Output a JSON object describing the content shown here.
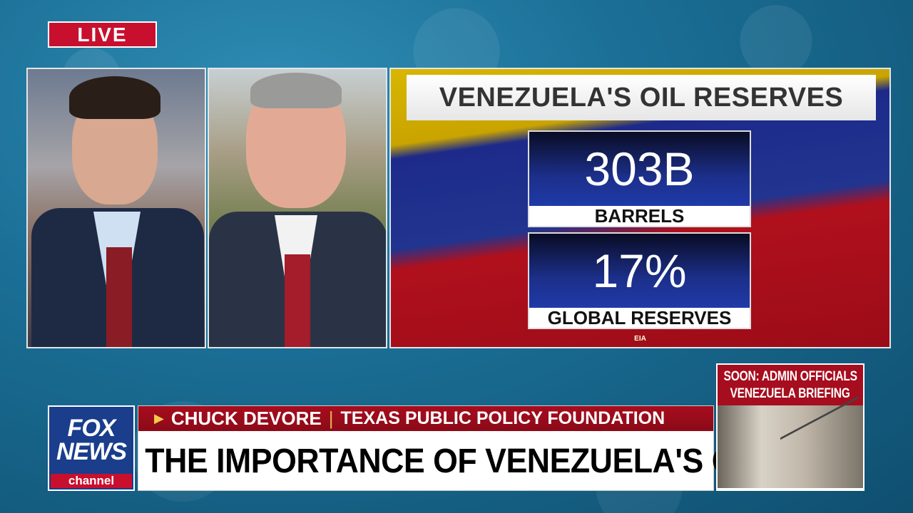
{
  "live_badge": "LIVE",
  "graphic": {
    "title": "VENEZUELA'S OIL RESERVES",
    "stats": [
      {
        "value": "303B",
        "label": "BARRELS"
      },
      {
        "value": "17%",
        "label": "GLOBAL RESERVES"
      }
    ],
    "source": "EIA"
  },
  "network": {
    "logo_text": "FOX NEWS",
    "logo_sub": "channel"
  },
  "lower_third": {
    "name": "CHUCK DEVORE",
    "affiliation": "TEXAS PUBLIC POLICY FOUNDATION",
    "headline": "THE IMPORTANCE OF VENEZUELA'S OIL"
  },
  "upcoming": {
    "line1": "SOON: ADMIN OFFICIALS",
    "line2": "VENEZUELA BRIEFING"
  },
  "colors": {
    "live_red": "#c8102e",
    "banner_red": "#a60d1e",
    "fox_blue": "#1a3d8c"
  }
}
